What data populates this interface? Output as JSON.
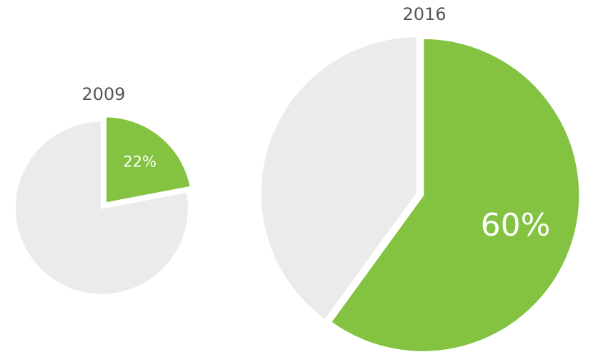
{
  "chart_data": [
    {
      "type": "pie",
      "title": "2009",
      "slices": [
        {
          "value": 22,
          "label": "22%",
          "color": "#84c341"
        },
        {
          "value": 78,
          "label": "",
          "color": "#ebebeb"
        }
      ]
    },
    {
      "type": "pie",
      "title": "2016",
      "slices": [
        {
          "value": 60,
          "label": "60%",
          "color": "#84c341"
        },
        {
          "value": 40,
          "label": "",
          "color": "#ebebeb"
        }
      ]
    }
  ]
}
